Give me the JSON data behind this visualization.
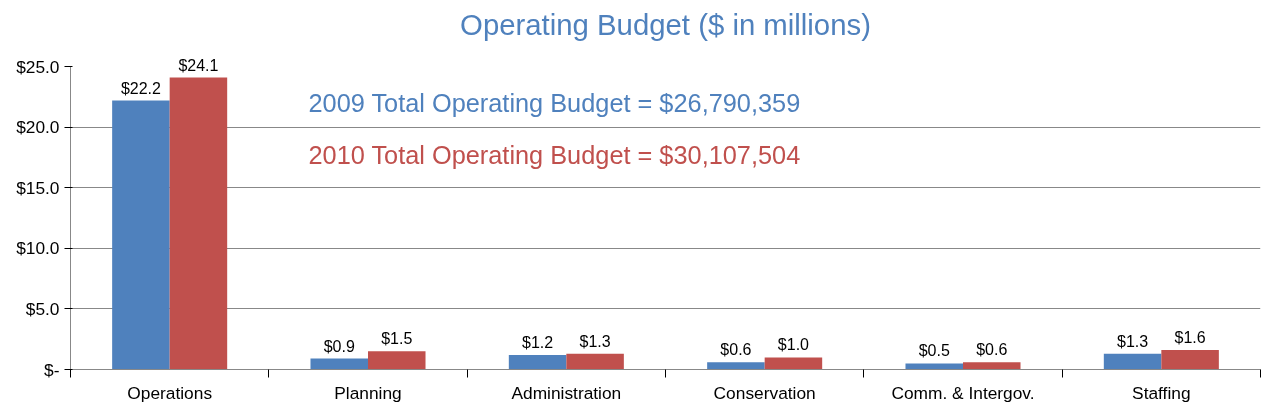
{
  "chart_data": {
    "type": "bar",
    "title": "Operating Budget ($ in millions)",
    "categories": [
      "Operations",
      "Planning",
      "Administration",
      "Conservation",
      "Comm. & Intergov.",
      "Staffing"
    ],
    "series": [
      {
        "color": "#4f81bd",
        "values": [
          22.2,
          0.9,
          1.2,
          0.6,
          0.5,
          1.3
        ],
        "value_labels": [
          "$22.2",
          "$0.9",
          "$1.2",
          "$0.6",
          "$0.5",
          "$1.3"
        ]
      },
      {
        "color": "#c0504d",
        "values": [
          24.1,
          1.5,
          1.3,
          1.0,
          0.6,
          1.6
        ],
        "value_labels": [
          "$24.1",
          "$1.5",
          "$1.3",
          "$1.0",
          "$0.6",
          "$1.6"
        ]
      }
    ],
    "ylim": [
      0,
      25
    ],
    "yticks": [
      {
        "value": 0,
        "label": "$-"
      },
      {
        "value": 5,
        "label": "$5.0"
      },
      {
        "value": 10,
        "label": "$10.0"
      },
      {
        "value": 15,
        "label": "$15.0"
      },
      {
        "value": 20,
        "label": "$20.0"
      },
      {
        "value": 25,
        "label": "$25.0"
      }
    ],
    "grid": "y",
    "annotations": [
      "2009 Total Operating Budget = $26,790,359",
      "2010 Total Operating Budget = $30,107,504"
    ]
  }
}
